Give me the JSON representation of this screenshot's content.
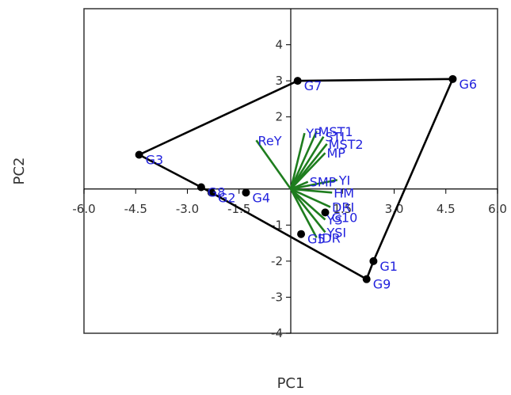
{
  "chart_data": {
    "type": "scatter",
    "title": "",
    "xlabel": "PC1",
    "ylabel": "PC2",
    "xlim": [
      -6.0,
      6.0
    ],
    "ylim": [
      -4,
      5
    ],
    "x_ticks": [
      -6.0,
      -4.5,
      -3.0,
      -1.5,
      1.5,
      3.0,
      4.5,
      6.0
    ],
    "x_tick_labels": [
      "-6.0",
      "-4.5",
      "-3.0",
      "-1.5",
      "1.5",
      "3.0",
      "4.5",
      "6.0"
    ],
    "y_ticks": [
      -4,
      -3,
      -2,
      -1,
      2,
      3,
      4
    ],
    "y_tick_labels": [
      "-4",
      "-3",
      "-2",
      "-1",
      "2",
      "3",
      "4"
    ],
    "grid": false,
    "point_color": "#000000",
    "label_color": "#2222dd",
    "vector_color": "#1e7d1e",
    "hull_color": "#000000",
    "genotypes": [
      {
        "name": "G1",
        "x": 2.4,
        "y": -2.0
      },
      {
        "name": "G2",
        "x": -2.3,
        "y": -0.1
      },
      {
        "name": "G3",
        "x": -4.4,
        "y": 0.95
      },
      {
        "name": "G4",
        "x": -1.3,
        "y": -0.1
      },
      {
        "name": "G5",
        "x": 0.3,
        "y": -1.25
      },
      {
        "name": "G6",
        "x": 4.7,
        "y": 3.05
      },
      {
        "name": "G7",
        "x": 0.2,
        "y": 3.0
      },
      {
        "name": "G8",
        "x": -2.6,
        "y": 0.05
      },
      {
        "name": "G9",
        "x": 2.2,
        "y": -2.5
      },
      {
        "name": "G10",
        "x": 1.0,
        "y": -0.65
      }
    ],
    "hull_order": [
      "G7",
      "G6",
      "G1",
      "G9",
      "G2",
      "G8",
      "G3"
    ],
    "traits": [
      {
        "name": "YP",
        "x": 0.4,
        "y": 1.55
      },
      {
        "name": "ReY",
        "x": -1.0,
        "y": 1.35
      },
      {
        "name": "MST1",
        "x": 0.75,
        "y": 1.6
      },
      {
        "name": "STI",
        "x": 0.95,
        "y": 1.45
      },
      {
        "name": "MST2",
        "x": 1.05,
        "y": 1.25
      },
      {
        "name": "MP",
        "x": 1.0,
        "y": 1.0
      },
      {
        "name": "SMP",
        "x": 0.5,
        "y": 0.2
      },
      {
        "name": "YI",
        "x": 1.35,
        "y": 0.25
      },
      {
        "name": "HM",
        "x": 1.2,
        "y": -0.1
      },
      {
        "name": "DRI",
        "x": 1.15,
        "y": -0.5
      },
      {
        "name": "YS",
        "x": 1.0,
        "y": -0.85
      },
      {
        "name": "YSI",
        "x": 1.0,
        "y": -1.2
      },
      {
        "name": "IDR",
        "x": 0.75,
        "y": -1.35
      }
    ]
  }
}
